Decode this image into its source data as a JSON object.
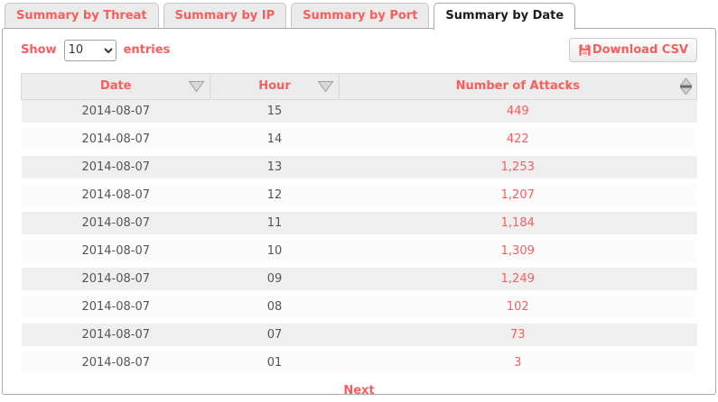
{
  "tabs": [
    {
      "label": "Summary by Threat",
      "active": false
    },
    {
      "label": "Summary by IP",
      "active": false
    },
    {
      "label": "Summary by Port",
      "active": false
    },
    {
      "label": "Summary by Date",
      "active": true
    }
  ],
  "controls": {
    "show_label": "Show",
    "page_size": "10",
    "entries_label": "entries",
    "download_csv_label": "Download CSV"
  },
  "table": {
    "columns": [
      {
        "label": "Date",
        "sort": "down"
      },
      {
        "label": "Hour",
        "sort": "down"
      },
      {
        "label": "Number of Attacks",
        "sort": "both"
      }
    ],
    "rows": [
      {
        "date": "2014-08-07",
        "hour": "15",
        "attacks": "449"
      },
      {
        "date": "2014-08-07",
        "hour": "14",
        "attacks": "422"
      },
      {
        "date": "2014-08-07",
        "hour": "13",
        "attacks": "1,253"
      },
      {
        "date": "2014-08-07",
        "hour": "12",
        "attacks": "1,207"
      },
      {
        "date": "2014-08-07",
        "hour": "11",
        "attacks": "1,184"
      },
      {
        "date": "2014-08-07",
        "hour": "10",
        "attacks": "1,309"
      },
      {
        "date": "2014-08-07",
        "hour": "09",
        "attacks": "1,249"
      },
      {
        "date": "2014-08-07",
        "hour": "08",
        "attacks": "102"
      },
      {
        "date": "2014-08-07",
        "hour": "07",
        "attacks": "73"
      },
      {
        "date": "2014-08-07",
        "hour": "01",
        "attacks": "3"
      }
    ]
  },
  "pagination": {
    "next_label": "Next"
  },
  "icons": {
    "save": "save-icon",
    "sort_down": "sort-down-icon",
    "sort_both": "sort-both-icon"
  },
  "colors": {
    "accent": "#fb5d5d",
    "inactive_tab_bg": "#ebebeb",
    "header_bg": "#ececec",
    "row_odd_bg": "#efefef",
    "row_even_bg": "#fbfbfb",
    "cell_text": "#555555"
  }
}
